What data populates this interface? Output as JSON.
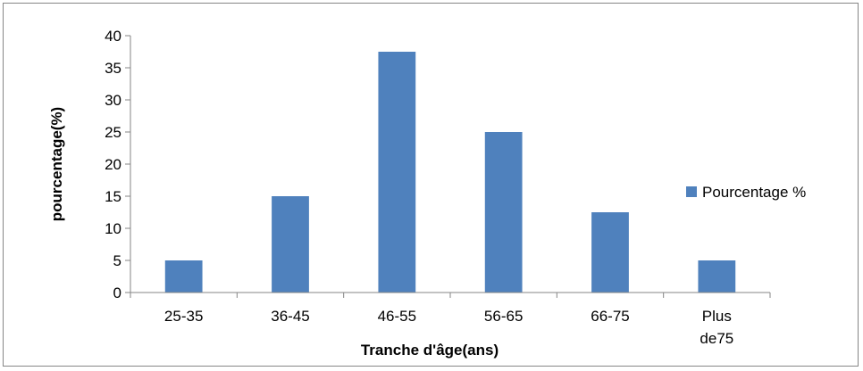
{
  "chart_data": {
    "type": "bar",
    "categories": [
      [
        "25-35"
      ],
      [
        "36-45"
      ],
      [
        "46-55"
      ],
      [
        "56-65"
      ],
      [
        "66-75"
      ],
      [
        "Plus",
        "de75"
      ]
    ],
    "series": [
      {
        "name": "Pourcentage %",
        "values": [
          5,
          15,
          37.5,
          25,
          12.5,
          5
        ],
        "color": "#4F81BD"
      }
    ],
    "xlabel": "Tranche d'âge(ans)",
    "ylabel": "pourcentage(%)",
    "ylim": [
      0,
      40
    ],
    "yticks": [
      0,
      5,
      10,
      15,
      20,
      25,
      30,
      35,
      40
    ],
    "grid": false,
    "legend_position": "right"
  }
}
